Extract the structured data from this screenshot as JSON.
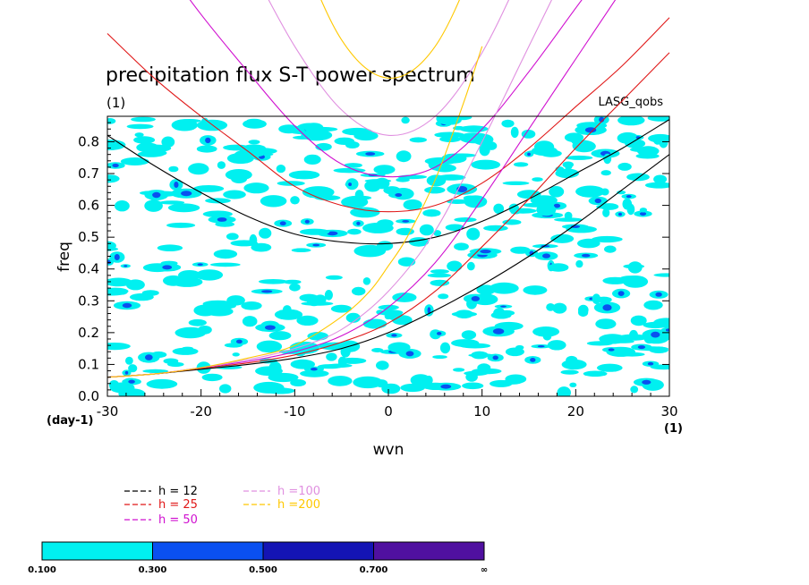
{
  "chart_data": {
    "type": "line",
    "title": "precipitation flux S-T power spectrum",
    "subtitle_left": "(1)",
    "subtitle_right": "LASG_qobs",
    "xlabel": "wvn",
    "ylabel": "freq",
    "xunit": "(1)",
    "yunit": "(day-1)",
    "xlim": [
      -30,
      30
    ],
    "ylim": [
      0,
      0.88
    ],
    "x_ticks": [
      -30,
      -20,
      -10,
      0,
      10,
      20,
      30
    ],
    "x_tick_labels": [
      "-30",
      "-20",
      "-10",
      "0",
      "10",
      "20",
      "30"
    ],
    "y_ticks": [
      0.0,
      0.1,
      0.2,
      0.3,
      0.4,
      0.5,
      0.6,
      0.7,
      0.8
    ],
    "y_tick_labels": [
      "0.0",
      "0.1",
      "0.2",
      "0.3",
      "0.4",
      "0.5",
      "0.6",
      "0.7",
      "0.8"
    ],
    "series": [
      {
        "name": "h = 12",
        "color": "#000000",
        "branches": [
          {
            "kind": "ig",
            "x": [
              -30,
              -25,
              -20,
              -15,
              -10,
              -5,
              0,
              5,
              10,
              15,
              20,
              25,
              30
            ],
            "y": [
              0.82,
              0.725,
              0.64,
              0.565,
              0.51,
              0.485,
              0.48,
              0.5,
              0.55,
              0.62,
              0.7,
              0.78,
              0.87
            ]
          },
          {
            "kind": "kelvin",
            "x": [
              -30,
              -25,
              -20,
              -15,
              -10,
              -5,
              0,
              5,
              10,
              15,
              20,
              25,
              30
            ],
            "y": [
              0.06,
              0.07,
              0.085,
              0.1,
              0.12,
              0.15,
              0.2,
              0.27,
              0.35,
              0.44,
              0.54,
              0.65,
              0.76
            ]
          }
        ]
      },
      {
        "name": "h = 25",
        "color": "#e01818",
        "branches": [
          {
            "kind": "ig",
            "x": [
              -30,
              -25,
              -20,
              -15,
              -10,
              -5,
              0,
              5,
              10,
              15,
              20,
              25,
              30
            ],
            "y": [
              1.14,
              1.0,
              0.88,
              0.77,
              0.66,
              0.6,
              0.58,
              0.6,
              0.67,
              0.78,
              0.91,
              1.04,
              1.19
            ]
          },
          {
            "kind": "kelvin",
            "x": [
              -30,
              -25,
              -20,
              -15,
              -10,
              -5,
              0,
              5,
              10,
              15,
              20,
              25,
              30
            ],
            "y": [
              0.06,
              0.07,
              0.088,
              0.105,
              0.13,
              0.17,
              0.23,
              0.33,
              0.47,
              0.62,
              0.78,
              0.93,
              1.08
            ]
          }
        ]
      },
      {
        "name": "h = 50",
        "color": "#d010d0",
        "branches": [
          {
            "kind": "ig",
            "x": [
              -30,
              -25,
              -20,
              -15,
              -10,
              -5,
              0,
              5,
              10,
              15,
              20,
              25,
              30
            ],
            "y": [
              1.6,
              1.4,
              1.2,
              1.02,
              0.85,
              0.73,
              0.69,
              0.72,
              0.84,
              1.02,
              1.22,
              1.42,
              1.62
            ]
          },
          {
            "kind": "kelvin",
            "x": [
              -30,
              -25,
              -20,
              -15,
              -10,
              -5,
              0,
              5,
              10,
              15,
              20,
              25,
              30
            ],
            "y": [
              0.06,
              0.07,
              0.09,
              0.11,
              0.14,
              0.19,
              0.28,
              0.42,
              0.62,
              0.84,
              1.06,
              1.28,
              1.5
            ]
          }
        ]
      },
      {
        "name": "h =100",
        "color": "#e090e0",
        "branches": [
          {
            "kind": "ig",
            "x": [
              -30,
              -25,
              -20,
              -15,
              -10,
              -5,
              0,
              5,
              10,
              15,
              20,
              25,
              30
            ],
            "y": [
              2.25,
              1.95,
              1.65,
              1.37,
              1.1,
              0.9,
              0.82,
              0.88,
              1.08,
              1.38,
              1.68,
              1.98,
              2.28
            ]
          },
          {
            "kind": "kelvin",
            "x": [
              -30,
              -25,
              -20,
              -15,
              -10,
              -5,
              0,
              5,
              10,
              15,
              20,
              25,
              30
            ],
            "y": [
              0.06,
              0.07,
              0.09,
              0.115,
              0.15,
              0.21,
              0.33,
              0.52,
              0.8,
              1.1,
              1.4,
              1.7,
              2.0
            ]
          }
        ]
      },
      {
        "name": "h =200",
        "color": "#ffc800",
        "branches": [
          {
            "kind": "ig",
            "x": [
              -30,
              -25,
              -20,
              -15,
              -10,
              -5,
              0,
              5,
              10,
              15,
              20,
              25,
              30
            ],
            "y": [
              3.2,
              2.75,
              2.3,
              1.85,
              1.45,
              1.12,
              1.0,
              1.1,
              1.42,
              1.84,
              2.28,
              2.72,
              3.17
            ]
          },
          {
            "kind": "kelvin",
            "x": [
              -30,
              -25,
              -20,
              -15,
              -10,
              -5,
              -2,
              0,
              2,
              5,
              8,
              10
            ],
            "y": [
              0.06,
              0.07,
              0.09,
              0.12,
              0.16,
              0.25,
              0.33,
              0.41,
              0.5,
              0.68,
              0.92,
              1.1
            ]
          }
        ]
      }
    ],
    "legend": [
      {
        "label": "h = 12",
        "color": "#000000"
      },
      {
        "label": "h = 25",
        "color": "#e01818"
      },
      {
        "label": "h = 50",
        "color": "#d010d0"
      },
      {
        "label": "h =100",
        "color": "#e090e0"
      },
      {
        "label": "h =200",
        "color": "#ffc800"
      }
    ],
    "colorbar": {
      "colors": [
        "#00f0f0",
        "#0a50f0",
        "#1414b4",
        "#5010a0"
      ],
      "labels": [
        "0.100",
        "0.300",
        "0.500",
        "0.700",
        "∞"
      ]
    },
    "grid": false
  }
}
